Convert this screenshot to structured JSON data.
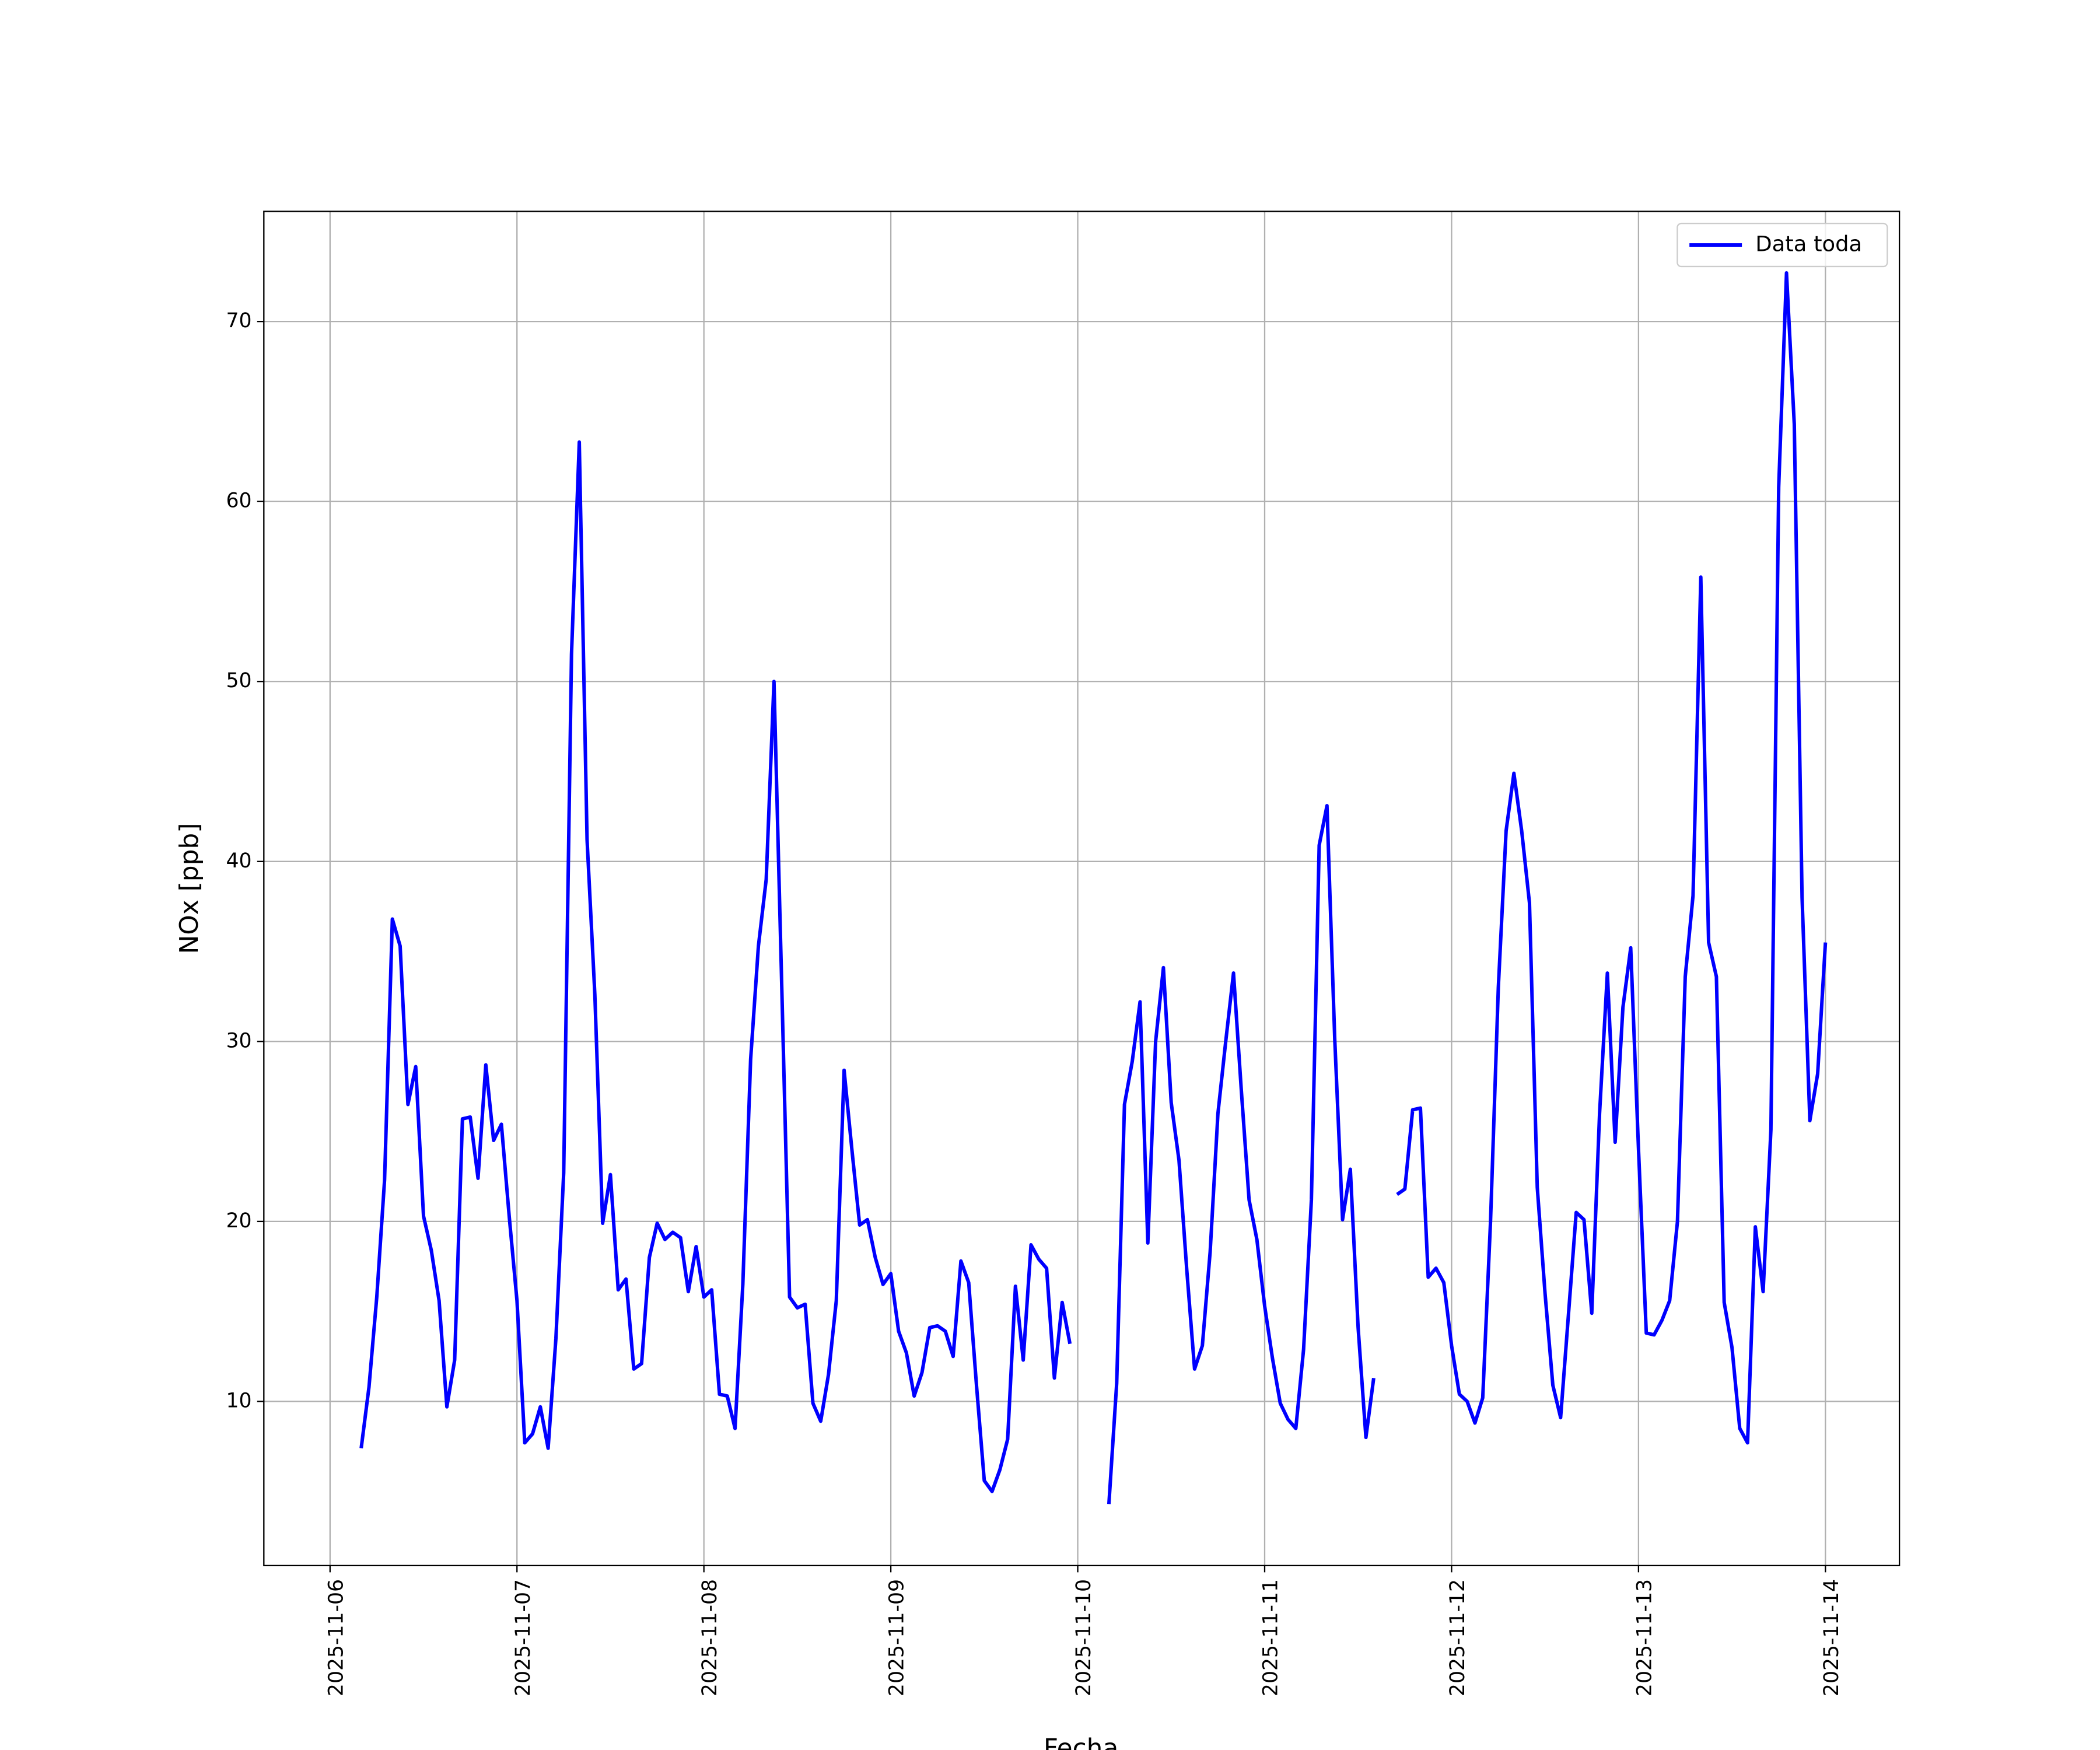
{
  "chart_data": {
    "type": "line",
    "xlabel": "Fecha",
    "ylabel": "NOx [ppb]",
    "x": [
      "2025-11-06 04:00",
      "2025-11-06 05:00",
      "2025-11-06 06:00",
      "2025-11-06 07:00",
      "2025-11-06 08:00",
      "2025-11-06 09:00",
      "2025-11-06 10:00",
      "2025-11-06 11:00",
      "2025-11-06 12:00",
      "2025-11-06 13:00",
      "2025-11-06 14:00",
      "2025-11-06 15:00",
      "2025-11-06 16:00",
      "2025-11-06 17:00",
      "2025-11-06 18:00",
      "2025-11-06 19:00",
      "2025-11-06 20:00",
      "2025-11-06 21:00",
      "2025-11-06 22:00",
      "2025-11-06 23:00",
      "2025-11-07 00:00",
      "2025-11-07 01:00",
      "2025-11-07 02:00",
      "2025-11-07 03:00",
      "2025-11-07 04:00",
      "2025-11-07 05:00",
      "2025-11-07 06:00",
      "2025-11-07 07:00",
      "2025-11-07 08:00",
      "2025-11-07 09:00",
      "2025-11-07 10:00",
      "2025-11-07 11:00",
      "2025-11-07 12:00",
      "2025-11-07 13:00",
      "2025-11-07 14:00",
      "2025-11-07 15:00",
      "2025-11-07 16:00",
      "2025-11-07 17:00",
      "2025-11-07 18:00",
      "2025-11-07 19:00",
      "2025-11-07 20:00",
      "2025-11-07 21:00",
      "2025-11-07 22:00",
      "2025-11-07 23:00",
      "2025-11-08 00:00",
      "2025-11-08 01:00",
      "2025-11-08 02:00",
      "2025-11-08 03:00",
      "2025-11-08 04:00",
      "2025-11-08 05:00",
      "2025-11-08 06:00",
      "2025-11-08 07:00",
      "2025-11-08 08:00",
      "2025-11-08 09:00",
      "2025-11-08 10:00",
      "2025-11-08 11:00",
      "2025-11-08 12:00",
      "2025-11-08 13:00",
      "2025-11-08 14:00",
      "2025-11-08 15:00",
      "2025-11-08 16:00",
      "2025-11-08 17:00",
      "2025-11-08 18:00",
      "2025-11-08 19:00",
      "2025-11-08 20:00",
      "2025-11-08 21:00",
      "2025-11-08 22:00",
      "2025-11-08 23:00",
      "2025-11-09 00:00",
      "2025-11-09 01:00",
      "2025-11-09 02:00",
      "2025-11-09 03:00",
      "2025-11-09 04:00",
      "2025-11-09 05:00",
      "2025-11-09 06:00",
      "2025-11-09 07:00",
      "2025-11-09 08:00",
      "2025-11-09 09:00",
      "2025-11-09 10:00",
      "2025-11-09 11:00",
      "2025-11-09 12:00",
      "2025-11-09 13:00",
      "2025-11-09 14:00",
      "2025-11-09 15:00",
      "2025-11-09 16:00",
      "2025-11-09 17:00",
      "2025-11-09 18:00",
      "2025-11-09 19:00",
      "2025-11-09 20:00",
      "2025-11-09 21:00",
      "2025-11-09 22:00",
      "2025-11-09 23:00",
      "2025-11-10 00:00",
      "2025-11-10 01:00",
      "2025-11-10 02:00",
      "2025-11-10 03:00",
      "2025-11-10 04:00",
      "2025-11-10 05:00",
      "2025-11-10 06:00",
      "2025-11-10 07:00",
      "2025-11-10 08:00",
      "2025-11-10 09:00",
      "2025-11-10 10:00",
      "2025-11-10 11:00",
      "2025-11-10 12:00",
      "2025-11-10 13:00",
      "2025-11-10 14:00",
      "2025-11-10 15:00",
      "2025-11-10 16:00",
      "2025-11-10 17:00",
      "2025-11-10 18:00",
      "2025-11-10 19:00",
      "2025-11-10 20:00",
      "2025-11-10 21:00",
      "2025-11-10 22:00",
      "2025-11-10 23:00",
      "2025-11-11 00:00",
      "2025-11-11 01:00",
      "2025-11-11 02:00",
      "2025-11-11 03:00",
      "2025-11-11 04:00",
      "2025-11-11 05:00",
      "2025-11-11 06:00",
      "2025-11-11 07:00",
      "2025-11-11 08:00",
      "2025-11-11 09:00",
      "2025-11-11 10:00",
      "2025-11-11 11:00",
      "2025-11-11 12:00",
      "2025-11-11 13:00",
      "2025-11-11 14:00",
      "2025-11-11 15:00",
      "2025-11-11 16:00",
      "2025-11-11 17:00",
      "2025-11-11 18:00",
      "2025-11-11 19:00",
      "2025-11-11 20:00",
      "2025-11-11 21:00",
      "2025-11-11 22:00",
      "2025-11-11 23:00",
      "2025-11-12 00:00",
      "2025-11-12 01:00",
      "2025-11-12 02:00",
      "2025-11-12 03:00",
      "2025-11-12 04:00",
      "2025-11-12 05:00",
      "2025-11-12 06:00",
      "2025-11-12 07:00",
      "2025-11-12 08:00",
      "2025-11-12 09:00",
      "2025-11-12 10:00",
      "2025-11-12 11:00",
      "2025-11-12 12:00",
      "2025-11-12 13:00",
      "2025-11-12 14:00",
      "2025-11-12 15:00",
      "2025-11-12 16:00",
      "2025-11-12 17:00",
      "2025-11-12 18:00",
      "2025-11-12 19:00",
      "2025-11-12 20:00",
      "2025-11-12 21:00",
      "2025-11-12 22:00",
      "2025-11-12 23:00",
      "2025-11-13 00:00",
      "2025-11-13 01:00",
      "2025-11-13 02:00",
      "2025-11-13 03:00",
      "2025-11-13 04:00",
      "2025-11-13 05:00",
      "2025-11-13 06:00",
      "2025-11-13 07:00",
      "2025-11-13 08:00",
      "2025-11-13 09:00",
      "2025-11-13 10:00",
      "2025-11-13 11:00",
      "2025-11-13 12:00",
      "2025-11-13 13:00",
      "2025-11-13 14:00",
      "2025-11-13 15:00",
      "2025-11-13 16:00",
      "2025-11-13 17:00",
      "2025-11-13 18:00",
      "2025-11-13 19:00",
      "2025-11-13 20:00",
      "2025-11-13 21:00",
      "2025-11-13 22:00",
      "2025-11-13 23:00",
      "2025-11-14 00:00"
    ],
    "series": [
      {
        "name": "Data toda",
        "color": "#0000ff",
        "values": [
          7.4,
          10.8,
          15.8,
          22.3,
          36.8,
          35.3,
          26.5,
          28.6,
          20.3,
          18.4,
          15.6,
          9.7,
          12.3,
          25.7,
          25.8,
          22.4,
          28.7,
          24.5,
          25.4,
          20.3,
          15.6,
          7.7,
          8.2,
          9.7,
          7.4,
          13.5,
          22.7,
          51.5,
          63.3,
          41.2,
          32.6,
          19.9,
          22.6,
          16.2,
          16.8,
          11.8,
          12.1,
          18.0,
          19.9,
          19.0,
          19.4,
          19.1,
          16.1,
          18.6,
          15.8,
          16.2,
          10.4,
          10.3,
          8.5,
          16.5,
          29.0,
          35.3,
          39.0,
          50.0,
          33.0,
          15.8,
          15.2,
          15.4,
          9.9,
          8.9,
          11.5,
          15.6,
          28.4,
          24.0,
          19.8,
          20.1,
          18.0,
          16.5,
          17.1,
          13.9,
          12.7,
          10.3,
          11.6,
          14.1,
          14.2,
          13.9,
          12.5,
          17.8,
          16.6,
          10.9,
          5.6,
          5.0,
          6.2,
          7.9,
          16.4,
          12.3,
          18.7,
          17.9,
          17.4,
          11.3,
          15.5,
          13.2,
          null,
          null,
          null,
          null,
          4.3,
          11.0,
          26.5,
          28.9,
          32.2,
          18.8,
          30.0,
          34.1,
          26.6,
          23.4,
          17.3,
          11.8,
          13.1,
          18.3,
          26.0,
          30.0,
          33.8,
          27.3,
          21.2,
          19.0,
          15.3,
          12.4,
          9.9,
          9.0,
          8.5,
          12.9,
          21.2,
          40.9,
          43.1,
          30.1,
          20.1,
          22.9,
          14.1,
          8.0,
          11.3,
          null,
          null,
          21.5,
          21.8,
          26.2,
          26.3,
          16.9,
          17.4,
          16.6,
          13.1,
          10.4,
          10.0,
          8.8,
          10.2,
          20.0,
          33.0,
          41.7,
          44.9,
          41.7,
          37.7,
          21.9,
          16.0,
          10.9,
          9.1,
          14.8,
          20.5,
          20.1,
          14.9,
          26.0,
          33.8,
          24.4,
          31.9,
          35.2,
          24.0,
          13.8,
          13.7,
          14.5,
          15.6,
          20.0,
          33.6,
          38.1,
          55.8,
          35.5,
          33.6,
          15.5,
          13.0,
          8.5,
          7.7,
          19.7,
          16.1,
          25.1,
          60.8,
          72.7,
          64.3,
          38.0,
          25.6,
          28.2,
          35.5
        ]
      }
    ],
    "xlim": [
      "2025-11-05 15:30",
      "2025-11-14 09:30"
    ],
    "xticks": [
      "2025-11-06",
      "2025-11-07",
      "2025-11-08",
      "2025-11-09",
      "2025-11-10",
      "2025-11-11",
      "2025-11-12",
      "2025-11-13",
      "2025-11-14"
    ],
    "ylim": [
      0.88,
      76.12
    ],
    "yticks": [
      10,
      20,
      30,
      40,
      50,
      60,
      70
    ],
    "grid": true,
    "legend": "upper right"
  }
}
